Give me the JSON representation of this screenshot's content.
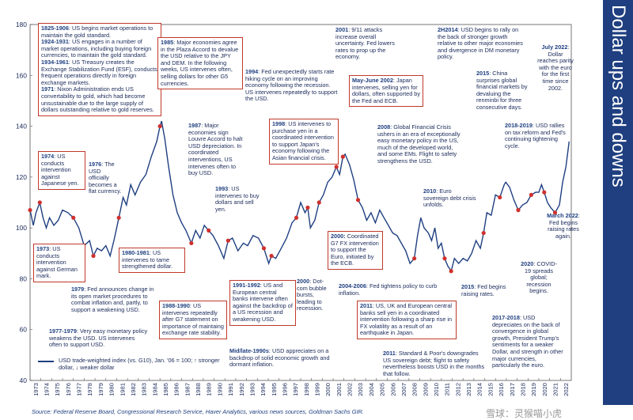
{
  "chart_data": {
    "type": "line",
    "title": "Dollar ups and downs",
    "ylim": [
      40,
      180
    ],
    "yticks": [
      40,
      60,
      80,
      100,
      120,
      140,
      160,
      180
    ],
    "xlim": [
      1973,
      2023
    ],
    "xticks": [
      "1973",
      "1974",
      "1975",
      "1976",
      "1977",
      "1978",
      "1979",
      "1980",
      "1981",
      "1982",
      "1983",
      "1984",
      "1985",
      "1986",
      "1987",
      "1988",
      "1989",
      "1990",
      "1991",
      "1992",
      "1993",
      "1994",
      "1995",
      "1996",
      "1997",
      "1998",
      "1999",
      "2000",
      "2001",
      "2002",
      "2003",
      "2004",
      "2005",
      "2006",
      "2007",
      "2008",
      "2009",
      "2010",
      "2011",
      "2012",
      "2013",
      "2014",
      "2015",
      "2016",
      "2017",
      "2018",
      "2019",
      "2020",
      "2021",
      "2022"
    ],
    "series": [
      {
        "name": "USD trade-weighted index (vs. G10), Jan. '06 = 100; ↑ stronger dollar, ↓ weaker dollar",
        "color": "#1f3f80",
        "x": [
          1973.0,
          1973.3,
          1973.55,
          1973.9,
          1974.2,
          1974.5,
          1974.8,
          1975.2,
          1975.6,
          1976.0,
          1976.5,
          1977.0,
          1977.5,
          1978.0,
          1978.5,
          1978.85,
          1979.2,
          1979.6,
          1980.0,
          1980.4,
          1980.8,
          1981.2,
          1981.6,
          1981.9,
          1982.3,
          1982.7,
          1983.2,
          1983.7,
          1984.2,
          1984.7,
          1985.0,
          1985.15,
          1985.45,
          1985.8,
          1986.2,
          1986.6,
          1987.0,
          1987.4,
          1987.9,
          1988.3,
          1988.7,
          1989.1,
          1989.5,
          1989.9,
          1990.4,
          1990.9,
          1991.3,
          1991.7,
          1992.2,
          1992.7,
          1993.1,
          1993.6,
          1994.1,
          1994.6,
          1995.05,
          1995.3,
          1995.7,
          1996.2,
          1996.7,
          1997.2,
          1997.6,
          1998.0,
          1998.4,
          1998.65,
          1998.9,
          1999.3,
          1999.7,
          2000.1,
          2000.5,
          2000.9,
          2001.3,
          2001.6,
          2001.9,
          2002.1,
          2002.5,
          2002.9,
          2003.3,
          2003.7,
          2004.1,
          2004.5,
          2004.9,
          2005.3,
          2005.7,
          2006.1,
          2006.5,
          2006.9,
          2007.3,
          2007.7,
          2008.1,
          2008.5,
          2008.8,
          2009.1,
          2009.4,
          2009.8,
          2010.1,
          2010.4,
          2010.7,
          2011.0,
          2011.3,
          2011.6,
          2011.9,
          2012.2,
          2012.6,
          2013.0,
          2013.4,
          2013.8,
          2014.2,
          2014.6,
          2014.9,
          2015.2,
          2015.6,
          2016.0,
          2016.4,
          2016.8,
          2016.95,
          2017.3,
          2017.7,
          2018.1,
          2018.5,
          2018.9,
          2019.3,
          2019.7,
          2020.0,
          2020.25,
          2020.5,
          2020.8,
          2021.1,
          2021.5,
          2021.9,
          2022.2,
          2022.5,
          2022.8
        ],
        "values": [
          107,
          101,
          106,
          110,
          104,
          100,
          104,
          101,
          103,
          107,
          106,
          104,
          100,
          93,
          95,
          89,
          92,
          91,
          93,
          89,
          96,
          104,
          112,
          109,
          117,
          113,
          118,
          121,
          128,
          134,
          140,
          142,
          135,
          124,
          113,
          106,
          102,
          99,
          94,
          99,
          96,
          101,
          99,
          97,
          93,
          88,
          95,
          96,
          91,
          94,
          93,
          97,
          96,
          92,
          86,
          89,
          88,
          92,
          96,
          102,
          104,
          110,
          106,
          108,
          100,
          103,
          110,
          113,
          118,
          120,
          124,
          121,
          128,
          129,
          125,
          119,
          111,
          108,
          103,
          106,
          102,
          107,
          104,
          101,
          98,
          97,
          94,
          91,
          86,
          88,
          97,
          104,
          100,
          98,
          95,
          100,
          92,
          94,
          88,
          85,
          83,
          88,
          86,
          88,
          87,
          90,
          95,
          92,
          98,
          106,
          105,
          113,
          112,
          117,
          118,
          116,
          111,
          107,
          109,
          110,
          113,
          114,
          114,
          117,
          114,
          110,
          108,
          106,
          109,
          118,
          124,
          134
        ]
      }
    ],
    "annotations": [
      {
        "year": "1825-1906",
        "text": "US begins market operations to maintain the gold standard."
      },
      {
        "year": "1924-1931",
        "text": "US engages in a number of market operations, including buying foreign currencies, to maintain the gold standard."
      },
      {
        "year": "1934-1961",
        "text": "US Treasury creates the Exchange Stabilization Fund (ESF), conducts frequent operations directly in foreign exchange markets."
      },
      {
        "year": "1971",
        "text": "Nixon Administration ends US convertability to gold, which had become unsustainable due to the large supply of dollars outstanding relative to gold reserves."
      },
      {
        "year": "1974",
        "text": "US conducts intervention against Japanese yen."
      },
      {
        "year": "1976",
        "text": "The USD officially becomes a flat currency."
      },
      {
        "year": "1973",
        "text": "US conducts intervention against German mark."
      },
      {
        "year": "1979",
        "text": "Fed announces change in its open market procedures to combat inflation and, partly, to support a weakening USD."
      },
      {
        "year": "1977-1979",
        "text": "Very easy monetary policy weakens the USD. US intervenes often to support USD."
      },
      {
        "year": "1980-1981",
        "text": "US intervenes to tame strengthened dollar."
      },
      {
        "year": "1985",
        "text": "Major economies agree in the Plaza Accord to devalue the USD relative to the JPY and DEM. In the following weeks, US intervenes often, selling dollars for other G5 currencies."
      },
      {
        "year": "1987",
        "text": "Major economies sign Louvre Accord to halt USD depreciation. In coordinated interventions, US intervenes often to buy USD."
      },
      {
        "year": "1988-1990",
        "text": "US intervenes repeatedly after G7 statement on importance of maintaing exchange rate stability."
      },
      {
        "year": "1993",
        "text": "US intervenes to buy dollars and sell yen."
      },
      {
        "year": "1994",
        "text": "Fed unexpectedly starts rate hiking cycle on an improving economy following the recession. US intervenes repeatedly to support the USD."
      },
      {
        "year": "1991-1992",
        "text": "US and European central banks intervene often against the backdrop of a US recession and weakening USD."
      },
      {
        "year": "Mid/late-1990s",
        "text": "USD appreciates on a backdrop of solid economic growth and dormant inflation."
      },
      {
        "year": "1998",
        "text": "US intervenes to purchase yen in a coordinated intervention to support Japan's economy following the Asian financial crisis."
      },
      {
        "year": "2000",
        "text": "Dot-com bubble bursts, leading to recession."
      },
      {
        "year": "2000:",
        "text": "Coordinated G7 FX intervention to support the Euro, initiated by the ECB."
      },
      {
        "year": "2001",
        "text": "9/11 attacks increase overall uncertainty. Fed lowers rates to prop up the economy."
      },
      {
        "year": "May-June 2002",
        "text": "Japan intervenes, selling yen for dollars, often supported by the Fed and ECB."
      },
      {
        "year": "2008",
        "text": "Global Financial Crisis ushers in an era of exceptionally easy monetary policy in the US, much of the developed world, and some EMs. Flight to safety strengthens the USD."
      },
      {
        "year": "2004-2006",
        "text": "Fed tightens policy to curb inflation."
      },
      {
        "year": "2011",
        "text": "US, UK and European central banks sell yen in a coordinated intervention following a sharp rise in FX volatility as a result of an earthquake in Japan."
      },
      {
        "year": "2011",
        "text": "Standard & Poor's downgrades US sovereign debt; flight to safety nevertheless boosts USD in the months that follow."
      },
      {
        "year": "2010",
        "text": "Euro sovereign debt crisis unfolds."
      },
      {
        "year": "2H2014",
        "text": "USD begins to rally on the back of stronger growth relative to other major economies and divergence in DM monetary policy."
      },
      {
        "year": "2015",
        "text": "China surprises global financial markets by devaluing the renminbi for three consecutive days."
      },
      {
        "year": "2015",
        "text": "Fed begins raising rates."
      },
      {
        "year": "July 2022",
        "text": "Dollar reaches parity with the euro for the first time since 2002."
      },
      {
        "year": "2018-2019",
        "text": "USD rallies on tax reform and Fed's continuing tightening cycle."
      },
      {
        "year": "March 2022",
        "text": "Fed begins raising rates again."
      },
      {
        "year": "2020",
        "text": "COVID-19 spreads global; recession begins."
      },
      {
        "year": "2017-2018",
        "text": "USD depreciates on the back of convergence in global growth, President Trump's sentiments for a weaker Dollar, and strength in other major currencies, particularly the euro."
      }
    ]
  },
  "source": "Source: Federal Reserve Board, Congressional Research Service, Haver Analytics, various news sources, Goldman Sachs GIR.",
  "watermark": "雪球：灵猴喵小虎"
}
